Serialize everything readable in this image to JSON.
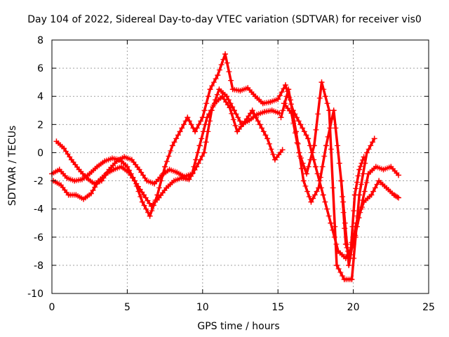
{
  "chart_data": {
    "type": "scatter",
    "title": "Day 104 of 2022, Sidereal Day-to-day VTEC variation (SDTVAR) for receiver vis0",
    "xlabel": "GPS time / hours",
    "ylabel": "SDTVAR / TECUs",
    "xlim": [
      0,
      25
    ],
    "ylim": [
      -10,
      8
    ],
    "xticks": [
      "0",
      "5",
      "10",
      "15",
      "20",
      "25"
    ],
    "yticks": [
      "8",
      "6",
      "4",
      "2",
      "0",
      "-2",
      "-4",
      "-6",
      "-8",
      "-10"
    ],
    "grid": true,
    "marker": "+",
    "color": "#ff0000",
    "series": [
      {
        "x": [
          0.0,
          0.5,
          1.0,
          1.5,
          2.0,
          2.5,
          3.0,
          3.5,
          4.0,
          4.5,
          5.0,
          5.5,
          6.0,
          6.5,
          7.0,
          7.5,
          8.0,
          8.5,
          9.0,
          9.5,
          10.0,
          10.5,
          11.0,
          11.5,
          12.0,
          12.5,
          13.0,
          13.5,
          14.0,
          14.5,
          15.0
        ],
        "y": [
          -1.5,
          -1.2,
          -1.8,
          -2.0,
          -1.9,
          -1.5,
          -1.0,
          -0.6,
          -0.4,
          -0.5,
          -1.0,
          -2.0,
          -3.5,
          -4.5,
          -3.0,
          -1.0,
          0.5,
          1.5,
          2.5,
          1.5,
          2.5,
          4.5,
          5.5,
          7.0,
          4.5,
          4.4,
          4.6,
          4.0,
          3.5,
          3.6,
          3.8
        ]
      },
      {
        "x": [
          0.1,
          0.6,
          1.1,
          1.6,
          2.1,
          2.6,
          3.1,
          3.6,
          4.1,
          4.6,
          5.1,
          5.6,
          6.1,
          6.6,
          7.1,
          7.6,
          8.1,
          8.6,
          9.1,
          9.6,
          10.1,
          10.6,
          11.1,
          11.6,
          12.1,
          12.6,
          13.1,
          13.6,
          14.1,
          14.6,
          15.1
        ],
        "y": [
          -2.0,
          -2.3,
          -3.0,
          -3.0,
          -3.3,
          -2.9,
          -2.0,
          -1.5,
          -1.2,
          -1.0,
          -1.4,
          -2.2,
          -3.0,
          -3.8,
          -3.2,
          -2.5,
          -2.0,
          -1.8,
          -1.9,
          -1.0,
          0.0,
          3.0,
          4.5,
          4.0,
          3.0,
          2.0,
          2.3,
          2.7,
          2.9,
          3.0,
          2.8
        ]
      },
      {
        "x": [
          0.3,
          0.8,
          1.3,
          1.8,
          2.3,
          2.8,
          3.3,
          3.8,
          4.3,
          4.8,
          5.3,
          5.8,
          6.3,
          6.8,
          7.3,
          7.8,
          8.3,
          8.8,
          9.3,
          9.8,
          10.3,
          10.8,
          11.3,
          11.8,
          12.3,
          12.8,
          13.3,
          13.8,
          14.3,
          14.8,
          15.3
        ],
        "y": [
          0.8,
          0.3,
          -0.5,
          -1.2,
          -1.8,
          -2.2,
          -2.0,
          -1.2,
          -0.6,
          -0.3,
          -0.5,
          -1.2,
          -2.0,
          -2.2,
          -1.6,
          -1.2,
          -1.4,
          -1.7,
          -1.5,
          0.5,
          2.5,
          3.5,
          4.0,
          3.2,
          1.5,
          2.2,
          3.0,
          2.0,
          1.0,
          -0.5,
          0.2
        ]
      },
      {
        "x": [
          15.0,
          15.5,
          16.0,
          16.5,
          17.0,
          17.5,
          18.0,
          18.5,
          19.0,
          19.5,
          20.0,
          20.5,
          21.0,
          21.5,
          22.0,
          22.5,
          23.0
        ],
        "y": [
          3.8,
          4.8,
          3.0,
          2.0,
          1.0,
          -1.0,
          -3.0,
          -5.0,
          -7.0,
          -7.5,
          -6.5,
          -4.0,
          -1.5,
          -1.0,
          -1.2,
          -1.0,
          -1.6
        ]
      },
      {
        "x": [
          15.2,
          15.7,
          16.2,
          16.7,
          17.2,
          17.7,
          18.2,
          18.7,
          19.2,
          19.7,
          20.2,
          20.7,
          21.2,
          21.7,
          22.2,
          22.7,
          23.0
        ],
        "y": [
          2.5,
          4.5,
          1.5,
          -2.0,
          -3.5,
          -2.5,
          0.5,
          3.0,
          -2.0,
          -8.0,
          -5.0,
          -3.5,
          -3.0,
          -2.0,
          -2.5,
          -3.0,
          -3.2
        ]
      },
      {
        "x": [
          15.4,
          15.9,
          16.4,
          16.9,
          17.4,
          17.9,
          18.4,
          18.9,
          19.4,
          19.9,
          20.4,
          20.9,
          21.4
        ],
        "y": [
          3.5,
          2.8,
          0.0,
          -1.5,
          0.5,
          5.0,
          3.0,
          -8.0,
          -9.0,
          -9.0,
          -3.0,
          0.0,
          1.0
        ]
      },
      {
        "x": [
          19.2,
          19.5,
          19.8,
          20.1,
          20.4,
          20.7
        ],
        "y": [
          -2.0,
          -6.5,
          -7.5,
          -3.0,
          -1.2,
          -0.3
        ]
      }
    ]
  }
}
